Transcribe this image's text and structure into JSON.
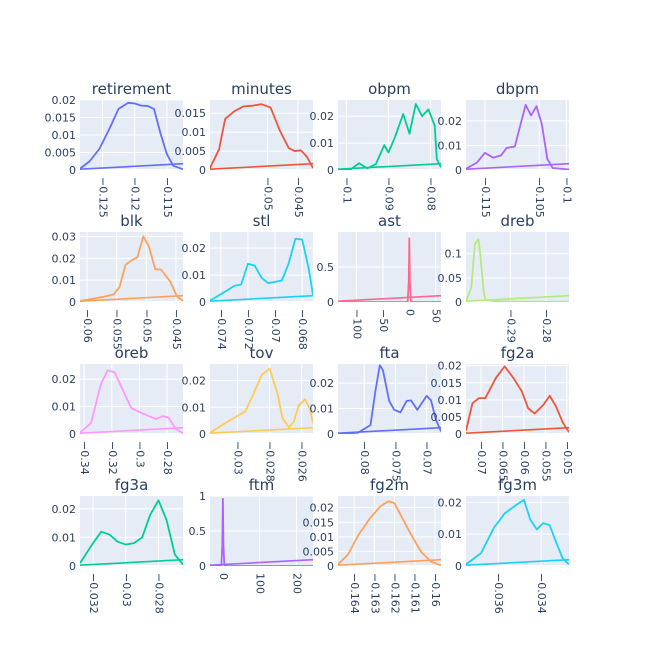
{
  "chart_data": [
    {
      "type": "line",
      "title": "retirement",
      "color": "#636efa",
      "xlim": [
        -0.1285,
        -0.1125
      ],
      "ylim": [
        0,
        0.02
      ],
      "xticks": [
        {
          "v": -0.125,
          "label": "−0.125"
        },
        {
          "v": -0.12,
          "label": "−0.12"
        },
        {
          "v": -0.115,
          "label": "−0.115"
        }
      ],
      "yticks": [
        {
          "v": 0,
          "label": "0"
        },
        {
          "v": 0.005,
          "label": "0.005"
        },
        {
          "v": 0.01,
          "label": "0.01"
        },
        {
          "v": 0.015,
          "label": "0.015"
        },
        {
          "v": 0.02,
          "label": "0.02"
        }
      ],
      "x": [
        -0.1285,
        -0.127,
        -0.1255,
        -0.124,
        -0.1225,
        -0.121,
        -0.12,
        -0.119,
        -0.118,
        -0.117,
        -0.116,
        -0.115,
        -0.114,
        -0.1125
      ],
      "y": [
        0.0004,
        0.0025,
        0.006,
        0.0115,
        0.0175,
        0.0192,
        0.019,
        0.0184,
        0.0183,
        0.0174,
        0.0105,
        0.0045,
        0.0012,
        0.0002
      ]
    },
    {
      "type": "line",
      "title": "minutes",
      "color": "#ef553b",
      "xlim": [
        -0.0595,
        -0.0425
      ],
      "ylim": [
        0,
        0.0185
      ],
      "xticks": [
        {
          "v": -0.05,
          "label": "−0.05"
        },
        {
          "v": -0.045,
          "label": "−0.045"
        }
      ],
      "yticks": [
        {
          "v": 0,
          "label": "0"
        },
        {
          "v": 0.005,
          "label": "0.005"
        },
        {
          "v": 0.01,
          "label": "0.01"
        },
        {
          "v": 0.015,
          "label": "0.015"
        }
      ],
      "x": [
        -0.0595,
        -0.058,
        -0.057,
        -0.0555,
        -0.054,
        -0.0525,
        -0.051,
        -0.0495,
        -0.048,
        -0.0465,
        -0.0455,
        -0.0445,
        -0.0435,
        -0.0425
      ],
      "y": [
        0.0005,
        0.0055,
        0.0135,
        0.0155,
        0.0168,
        0.017,
        0.0174,
        0.0165,
        0.0105,
        0.0058,
        0.005,
        0.0052,
        0.0035,
        0.0005
      ]
    },
    {
      "type": "line",
      "title": "obpm",
      "color": "#00cc96",
      "xlim": [
        -0.102,
        -0.0775
      ],
      "ylim": [
        0,
        0.026
      ],
      "xticks": [
        {
          "v": -0.1,
          "label": "−0.1"
        },
        {
          "v": -0.09,
          "label": "−0.09"
        },
        {
          "v": -0.08,
          "label": "−0.08"
        }
      ],
      "yticks": [
        {
          "v": 0,
          "label": "0"
        },
        {
          "v": 0.01,
          "label": "0.01"
        },
        {
          "v": 0.02,
          "label": "0.02"
        }
      ],
      "x": [
        -0.102,
        -0.099,
        -0.097,
        -0.095,
        -0.093,
        -0.091,
        -0.09,
        -0.0885,
        -0.0865,
        -0.085,
        -0.0835,
        -0.082,
        -0.0805,
        -0.079,
        -0.0785,
        -0.0775
      ],
      "y": [
        0,
        0.0002,
        0.0025,
        0.0006,
        0.0022,
        0.0092,
        0.0065,
        0.012,
        0.0208,
        0.0135,
        0.0245,
        0.02,
        0.0225,
        0.0165,
        0.004,
        0.001
      ]
    },
    {
      "type": "line",
      "title": "dbpm",
      "color": "#ab63fa",
      "xlim": [
        -0.1185,
        -0.0995
      ],
      "ylim": [
        0,
        0.0285
      ],
      "xticks": [
        {
          "v": -0.115,
          "label": "−0.115"
        },
        {
          "v": -0.105,
          "label": "−0.105"
        },
        {
          "v": -0.1,
          "label": "−0.1"
        }
      ],
      "yticks": [
        {
          "v": 0,
          "label": "0"
        },
        {
          "v": 0.01,
          "label": "0.01"
        },
        {
          "v": 0.02,
          "label": "0.02"
        }
      ],
      "x": [
        -0.1185,
        -0.1165,
        -0.115,
        -0.1135,
        -0.112,
        -0.111,
        -0.1095,
        -0.1085,
        -0.1075,
        -0.1065,
        -0.1055,
        -0.1045,
        -0.1035,
        -0.1025,
        -0.101,
        -0.0995
      ],
      "y": [
        0.0005,
        0.003,
        0.007,
        0.005,
        0.006,
        0.009,
        0.0095,
        0.018,
        0.0265,
        0.0222,
        0.026,
        0.0185,
        0.0045,
        0.0008,
        0.0005,
        0.0002
      ]
    },
    {
      "type": "line",
      "title": "blk",
      "color": "#ffa15a",
      "xlim": [
        -0.0612,
        -0.0438
      ],
      "ylim": [
        0,
        0.032
      ],
      "xticks": [
        {
          "v": -0.06,
          "label": "−0.06"
        },
        {
          "v": -0.055,
          "label": "−0.055"
        },
        {
          "v": -0.05,
          "label": "−0.05"
        },
        {
          "v": -0.045,
          "label": "−0.045"
        }
      ],
      "yticks": [
        {
          "v": 0,
          "label": "0"
        },
        {
          "v": 0.01,
          "label": "0.01"
        },
        {
          "v": 0.02,
          "label": "0.02"
        },
        {
          "v": 0.03,
          "label": "0.03"
        }
      ],
      "x": [
        -0.0612,
        -0.059,
        -0.057,
        -0.0555,
        -0.0545,
        -0.0535,
        -0.0525,
        -0.0515,
        -0.0505,
        -0.0495,
        -0.0485,
        -0.0475,
        -0.046,
        -0.0448,
        -0.0438
      ],
      "y": [
        0.0005,
        0.0015,
        0.0025,
        0.0035,
        0.007,
        0.017,
        0.019,
        0.0205,
        0.03,
        0.025,
        0.015,
        0.0148,
        0.0095,
        0.0025,
        0.0005
      ]
    },
    {
      "type": "line",
      "title": "stl",
      "color": "#19d3f3",
      "xlim": [
        -0.0748,
        -0.0672
      ],
      "ylim": [
        0,
        0.026
      ],
      "xticks": [
        {
          "v": -0.074,
          "label": "−0.074"
        },
        {
          "v": -0.072,
          "label": "−0.072"
        },
        {
          "v": -0.07,
          "label": "−0.07"
        },
        {
          "v": -0.068,
          "label": "−0.068"
        }
      ],
      "yticks": [
        {
          "v": 0,
          "label": "0"
        },
        {
          "v": 0.01,
          "label": "0.01"
        },
        {
          "v": 0.02,
          "label": "0.02"
        }
      ],
      "x": [
        -0.0748,
        -0.0738,
        -0.073,
        -0.0725,
        -0.072,
        -0.0715,
        -0.071,
        -0.0705,
        -0.0695,
        -0.069,
        -0.0685,
        -0.068,
        -0.0675,
        -0.0672
      ],
      "y": [
        0.0005,
        0.0035,
        0.006,
        0.0065,
        0.0142,
        0.0135,
        0.009,
        0.007,
        0.008,
        0.0142,
        0.0235,
        0.0232,
        0.012,
        0.0025
      ]
    },
    {
      "type": "line",
      "title": "ast",
      "color": "#ff6692",
      "xlim": [
        -135,
        60
      ],
      "ylim": [
        0,
        1.0
      ],
      "xticks": [
        {
          "v": -100,
          "label": "−100"
        },
        {
          "v": -50,
          "label": "−50"
        },
        {
          "v": 0,
          "label": "0"
        },
        {
          "v": 50,
          "label": "50"
        }
      ],
      "yticks": [
        {
          "v": 0,
          "label": "0"
        },
        {
          "v": 0.5,
          "label": "0.5"
        }
      ],
      "x": [
        -135,
        -6,
        -3,
        -1,
        0,
        1,
        3,
        6,
        60
      ],
      "y": [
        0,
        0,
        0.01,
        0.3,
        0.91,
        0.3,
        0.01,
        0,
        0
      ]
    },
    {
      "type": "line",
      "title": "dreb",
      "color": "#b6e880",
      "xlim": [
        -0.3025,
        -0.2735
      ],
      "ylim": [
        0,
        0.145
      ],
      "xticks": [
        {
          "v": -0.29,
          "label": "−0.29"
        },
        {
          "v": -0.28,
          "label": "−0.28"
        }
      ],
      "yticks": [
        {
          "v": 0,
          "label": "0"
        },
        {
          "v": 0.05,
          "label": "0.05"
        },
        {
          "v": 0.1,
          "label": "0.1"
        }
      ],
      "x": [
        -0.3025,
        -0.301,
        -0.3,
        -0.299,
        -0.2985,
        -0.2975,
        -0.297,
        -0.2935,
        -0.2735
      ],
      "y": [
        0.002,
        0.03,
        0.12,
        0.13,
        0.1,
        0.02,
        0.004,
        0.001,
        0.0005
      ]
    },
    {
      "type": "line",
      "title": "oreb",
      "color": "#ff97ff",
      "xlim": [
        -0.343,
        -0.2685
      ],
      "ylim": [
        0,
        0.0255
      ],
      "xticks": [
        {
          "v": -0.34,
          "label": "−0.34"
        },
        {
          "v": -0.32,
          "label": "−0.32"
        },
        {
          "v": -0.3,
          "label": "−0.3"
        },
        {
          "v": -0.28,
          "label": "−0.28"
        }
      ],
      "yticks": [
        {
          "v": 0,
          "label": "0"
        },
        {
          "v": 0.01,
          "label": "0.01"
        },
        {
          "v": 0.02,
          "label": "0.02"
        }
      ],
      "x": [
        -0.343,
        -0.335,
        -0.328,
        -0.323,
        -0.318,
        -0.312,
        -0.306,
        -0.3,
        -0.293,
        -0.288,
        -0.283,
        -0.279,
        -0.274,
        -0.2685
      ],
      "y": [
        0.0005,
        0.004,
        0.018,
        0.0232,
        0.0225,
        0.016,
        0.0095,
        0.008,
        0.0065,
        0.0055,
        0.0065,
        0.006,
        0.002,
        0.0002
      ]
    },
    {
      "type": "line",
      "title": "tov",
      "color": "#fecb52",
      "xlim": [
        -0.0317,
        -0.0253
      ],
      "ylim": [
        0,
        0.0262
      ],
      "xticks": [
        {
          "v": -0.03,
          "label": "−0.03"
        },
        {
          "v": -0.028,
          "label": "−0.028"
        },
        {
          "v": -0.026,
          "label": "−0.026"
        }
      ],
      "yticks": [
        {
          "v": 0,
          "label": "0"
        },
        {
          "v": 0.01,
          "label": "0.01"
        },
        {
          "v": 0.02,
          "label": "0.02"
        }
      ],
      "x": [
        -0.0317,
        -0.0305,
        -0.0295,
        -0.029,
        -0.0285,
        -0.028,
        -0.0275,
        -0.0272,
        -0.0268,
        -0.0265,
        -0.0262,
        -0.0258,
        -0.0255,
        -0.0253
      ],
      "y": [
        0.0005,
        0.005,
        0.0085,
        0.015,
        0.022,
        0.0245,
        0.015,
        0.006,
        0.0025,
        0.0045,
        0.0105,
        0.013,
        0.0095,
        0.004
      ]
    },
    {
      "type": "line",
      "title": "fta",
      "color": "#636efa",
      "xlim": [
        -0.0842,
        -0.0677
      ],
      "ylim": [
        0,
        0.0275
      ],
      "xticks": [
        {
          "v": -0.08,
          "label": "−0.08"
        },
        {
          "v": -0.075,
          "label": "−0.075"
        },
        {
          "v": -0.07,
          "label": "−0.07"
        }
      ],
      "yticks": [
        {
          "v": 0,
          "label": "0"
        },
        {
          "v": 0.01,
          "label": "0.01"
        },
        {
          "v": 0.02,
          "label": "0.02"
        }
      ],
      "x": [
        -0.0842,
        -0.081,
        -0.079,
        -0.0782,
        -0.0775,
        -0.077,
        -0.076,
        -0.0752,
        -0.0742,
        -0.0732,
        -0.0725,
        -0.0715,
        -0.07,
        -0.0693,
        -0.0685,
        -0.0677
      ],
      "y": [
        0,
        0.0005,
        0.0035,
        0.017,
        0.027,
        0.025,
        0.013,
        0.0095,
        0.0085,
        0.013,
        0.0132,
        0.0095,
        0.015,
        0.0132,
        0.0055,
        0.001
      ]
    },
    {
      "type": "line",
      "title": "fg2a",
      "color": "#ef553b",
      "xlim": [
        -0.0735,
        -0.0495
      ],
      "ylim": [
        0,
        0.0205
      ],
      "xticks": [
        {
          "v": -0.07,
          "label": "−0.07"
        },
        {
          "v": -0.065,
          "label": "−0.065"
        },
        {
          "v": -0.06,
          "label": "−0.06"
        },
        {
          "v": -0.055,
          "label": "−0.055"
        },
        {
          "v": -0.05,
          "label": "−0.05"
        }
      ],
      "yticks": [
        {
          "v": 0,
          "label": "0"
        },
        {
          "v": 0.005,
          "label": "0.005"
        },
        {
          "v": 0.01,
          "label": "0.01"
        },
        {
          "v": 0.015,
          "label": "0.015"
        },
        {
          "v": 0.02,
          "label": "0.02"
        }
      ],
      "x": [
        -0.0735,
        -0.072,
        -0.0705,
        -0.069,
        -0.0665,
        -0.0645,
        -0.0625,
        -0.0605,
        -0.059,
        -0.0575,
        -0.0555,
        -0.054,
        -0.0525,
        -0.051,
        -0.0495
      ],
      "y": [
        0.001,
        0.009,
        0.0105,
        0.0105,
        0.0165,
        0.0198,
        0.0165,
        0.0125,
        0.0075,
        0.006,
        0.0085,
        0.0112,
        0.008,
        0.0035,
        0.0005
      ]
    },
    {
      "type": "line",
      "title": "fg3a",
      "color": "#00cc96",
      "xlim": [
        -0.0328,
        -0.0265
      ],
      "ylim": [
        0,
        0.0245
      ],
      "xticks": [
        {
          "v": -0.032,
          "label": "−0.032"
        },
        {
          "v": -0.03,
          "label": "−0.03"
        },
        {
          "v": -0.028,
          "label": "−0.028"
        }
      ],
      "yticks": [
        {
          "v": 0,
          "label": "0"
        },
        {
          "v": 0.01,
          "label": "0.01"
        },
        {
          "v": 0.02,
          "label": "0.02"
        }
      ],
      "x": [
        -0.0328,
        -0.032,
        -0.0315,
        -0.031,
        -0.0305,
        -0.03,
        -0.0295,
        -0.029,
        -0.0285,
        -0.028,
        -0.0275,
        -0.027,
        -0.0265
      ],
      "y": [
        0.001,
        0.008,
        0.012,
        0.011,
        0.0085,
        0.0075,
        0.008,
        0.01,
        0.018,
        0.023,
        0.016,
        0.004,
        0.0005
      ]
    },
    {
      "type": "line",
      "title": "ftm",
      "color": "#ab63fa",
      "xlim": [
        -35,
        245
      ],
      "ylim": [
        0,
        1.0
      ],
      "xticks": [
        {
          "v": 0,
          "label": "0"
        },
        {
          "v": 100,
          "label": "100"
        },
        {
          "v": 200,
          "label": "200"
        }
      ],
      "yticks": [
        {
          "v": 0,
          "label": "0"
        },
        {
          "v": 0.5,
          "label": "0.5"
        },
        {
          "v": 1,
          "label": "1"
        }
      ],
      "x": [
        -35,
        -4,
        -1.5,
        0,
        1.5,
        4,
        245
      ],
      "y": [
        0,
        0,
        0.3,
        0.96,
        0.3,
        0,
        0
      ]
    },
    {
      "type": "line",
      "title": "fg2m",
      "color": "#ffa15a",
      "xlim": [
        -0.1648,
        -0.1597
      ],
      "ylim": [
        0,
        0.024
      ],
      "xticks": [
        {
          "v": -0.164,
          "label": "−0.164"
        },
        {
          "v": -0.163,
          "label": "−0.163"
        },
        {
          "v": -0.162,
          "label": "−0.162"
        },
        {
          "v": -0.161,
          "label": "−0.161"
        },
        {
          "v": -0.16,
          "label": "−0.16"
        }
      ],
      "yticks": [
        {
          "v": 0,
          "label": "0"
        },
        {
          "v": 0.005,
          "label": "0.005"
        },
        {
          "v": 0.01,
          "label": "0.01"
        },
        {
          "v": 0.015,
          "label": "0.015"
        },
        {
          "v": 0.02,
          "label": "0.02"
        }
      ],
      "x": [
        -0.1648,
        -0.1643,
        -0.1638,
        -0.1632,
        -0.1627,
        -0.1623,
        -0.162,
        -0.1617,
        -0.1612,
        -0.1607,
        -0.1602,
        -0.1597
      ],
      "y": [
        0.0005,
        0.004,
        0.0105,
        0.0165,
        0.0205,
        0.0222,
        0.0215,
        0.0175,
        0.011,
        0.005,
        0.0015,
        0.0002
      ]
    },
    {
      "type": "line",
      "title": "fg3m",
      "color": "#19d3f3",
      "xlim": [
        -0.0375,
        -0.0327
      ],
      "ylim": [
        0,
        0.022
      ],
      "xticks": [
        {
          "v": -0.036,
          "label": "−0.036"
        },
        {
          "v": -0.034,
          "label": "−0.034"
        }
      ],
      "yticks": [
        {
          "v": 0,
          "label": "0"
        },
        {
          "v": 0.01,
          "label": "0.01"
        },
        {
          "v": 0.02,
          "label": "0.02"
        }
      ],
      "x": [
        -0.0375,
        -0.0368,
        -0.0362,
        -0.0357,
        -0.0352,
        -0.0348,
        -0.0345,
        -0.0342,
        -0.0339,
        -0.0336,
        -0.0333,
        -0.033,
        -0.0327
      ],
      "y": [
        0.0005,
        0.004,
        0.012,
        0.0165,
        0.019,
        0.0208,
        0.0145,
        0.0115,
        0.0135,
        0.0128,
        0.0075,
        0.0025,
        0.0005
      ]
    }
  ]
}
